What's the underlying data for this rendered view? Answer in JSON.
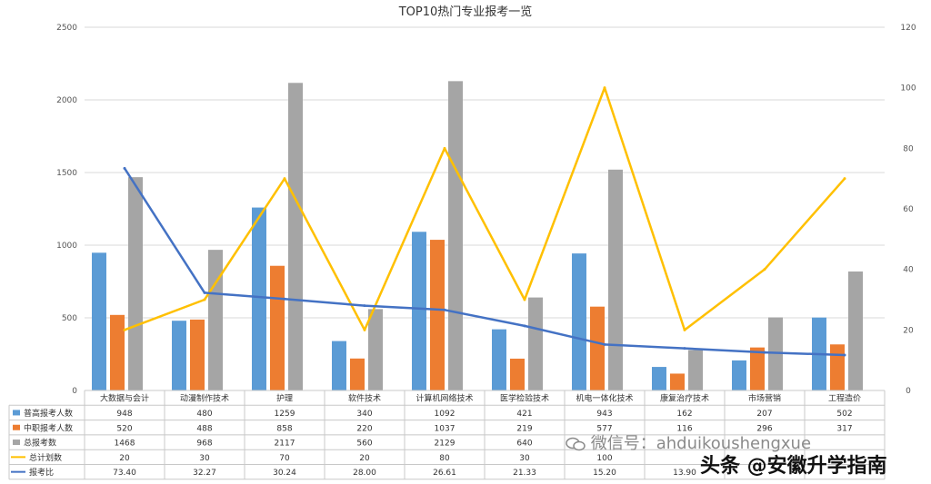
{
  "chart_data": {
    "type": "bar",
    "title": "TOP10热门专业报考一览",
    "categories": [
      "大数据与会计",
      "动漫制作技术",
      "护理",
      "软件技术",
      "计算机网络技术",
      "医学检验技术",
      "机电一体化技术",
      "康复治疗技术",
      "市场营销",
      "工程造价"
    ],
    "y_left": {
      "range": [
        0,
        2500
      ],
      "ticks": [
        "0",
        "500",
        "1000",
        "1500",
        "2000",
        "2500"
      ]
    },
    "y_right": {
      "range": [
        0,
        120
      ],
      "ticks": [
        "0",
        "20",
        "40",
        "60",
        "80",
        "100",
        "120"
      ]
    },
    "grid": true,
    "series": [
      {
        "name": "普高报考人数",
        "type": "bar",
        "axis": "left",
        "color": "#5b9bd5",
        "values": [
          948,
          480,
          1259,
          340,
          1092,
          421,
          943,
          162,
          207,
          502
        ],
        "labels": [
          "948",
          "480",
          "1259",
          "340",
          "1092",
          "421",
          "943",
          "162",
          "207",
          "502"
        ]
      },
      {
        "name": "中职报考人数",
        "type": "bar",
        "axis": "left",
        "color": "#ed7d31",
        "values": [
          520,
          488,
          858,
          220,
          1037,
          219,
          577,
          116,
          296,
          317
        ],
        "labels": [
          "520",
          "488",
          "858",
          "220",
          "1037",
          "219",
          "577",
          "116",
          "296",
          "317"
        ]
      },
      {
        "name": "总报考数",
        "type": "bar",
        "axis": "left",
        "color": "#a5a5a5",
        "values": [
          1468,
          968,
          2117,
          560,
          2129,
          640,
          1520,
          278,
          503,
          819
        ],
        "labels": [
          "1468",
          "968",
          "2117",
          "560",
          "2129",
          "640",
          "",
          "",
          "",
          ""
        ]
      },
      {
        "name": "总计划数",
        "type": "line",
        "axis": "right",
        "color": "#ffc000",
        "values": [
          20,
          30,
          70,
          20,
          80,
          30,
          100,
          20,
          40,
          70
        ],
        "labels": [
          "20",
          "30",
          "70",
          "20",
          "80",
          "30",
          "100",
          "",
          "",
          ""
        ]
      },
      {
        "name": "报考比",
        "type": "line",
        "axis": "right",
        "color": "#4472c4",
        "values": [
          73.4,
          32.27,
          30.24,
          28.0,
          26.61,
          21.33,
          15.2,
          13.9,
          12.58,
          11.7
        ],
        "labels": [
          "73.40",
          "32.27",
          "30.24",
          "28.00",
          "26.61",
          "21.33",
          "15.20",
          "13.90",
          "",
          ""
        ]
      }
    ]
  },
  "watermark": {
    "line1": "微信号：ahduikoushengxue",
    "line2": "头条 @安徽升学指南"
  }
}
